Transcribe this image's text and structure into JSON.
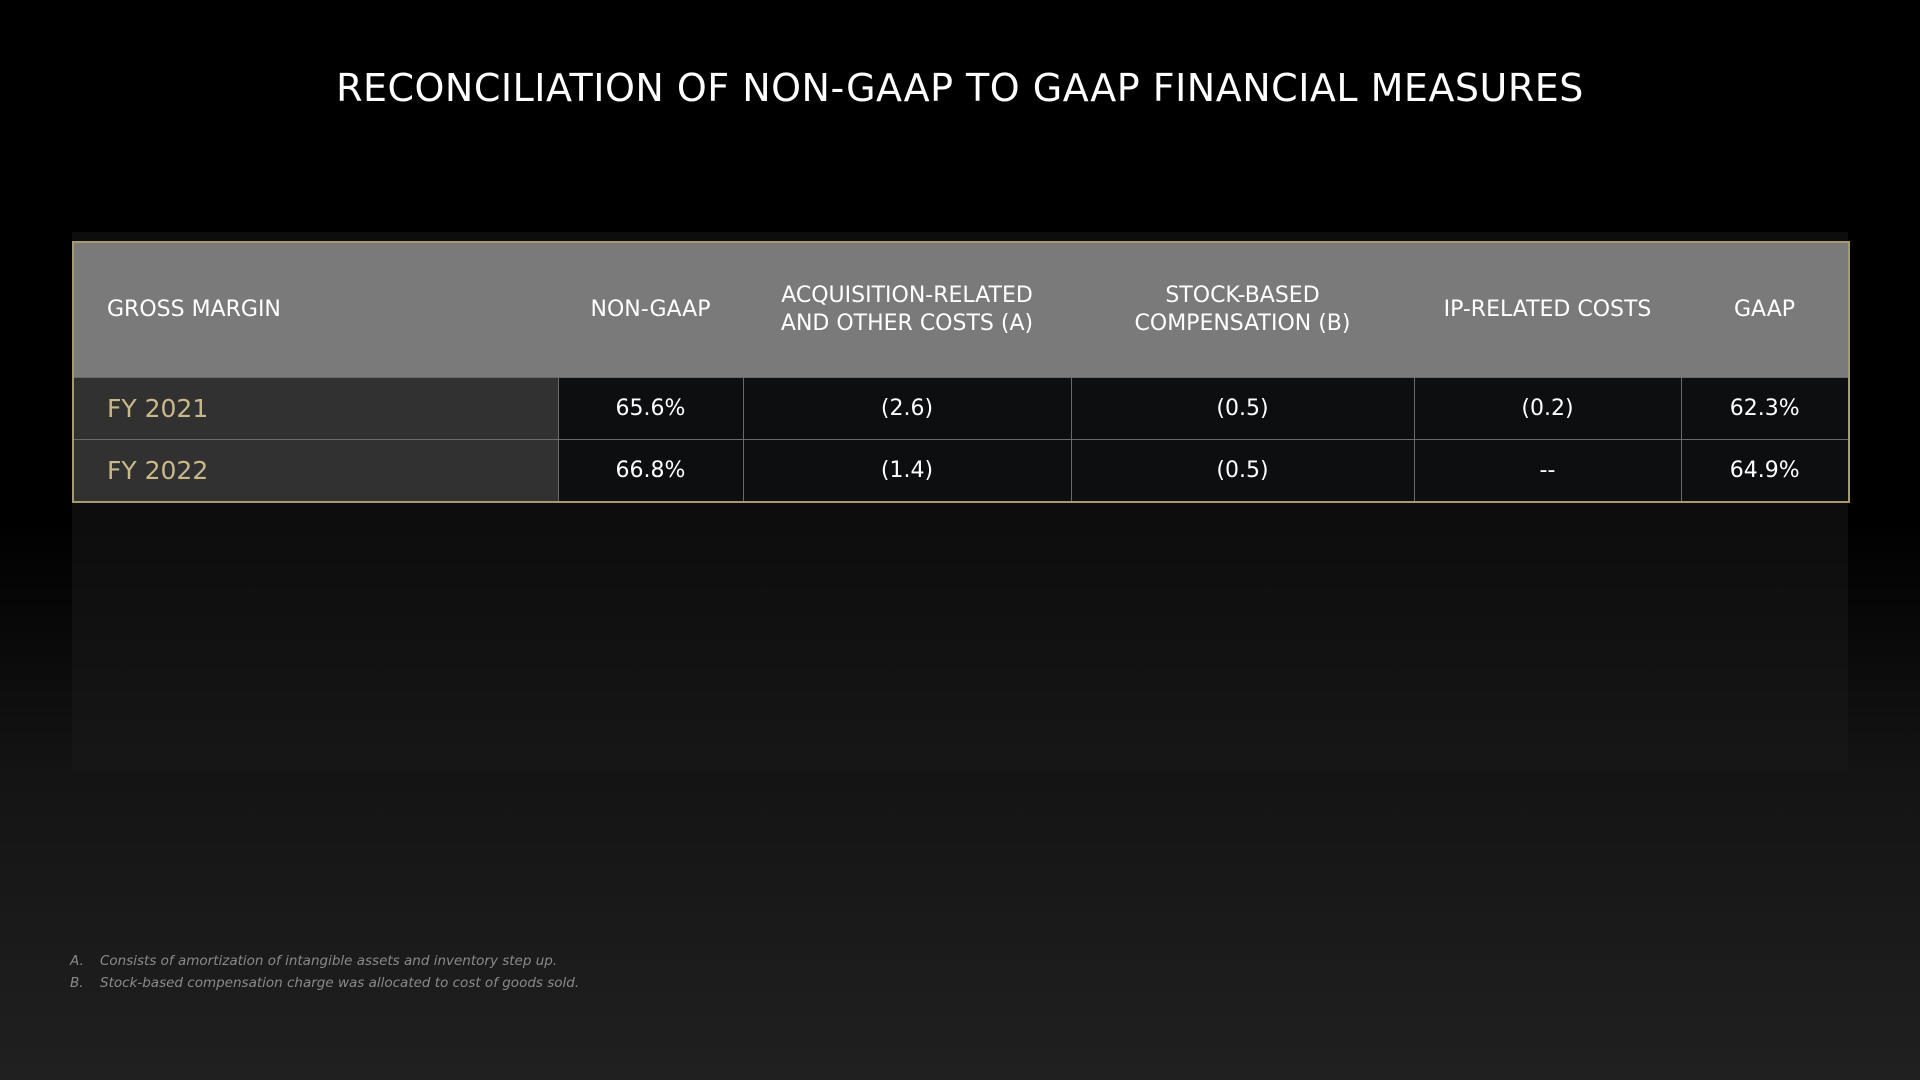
{
  "title": "RECONCILIATION OF NON-GAAP TO GAAP FINANCIAL MEASURES",
  "table": {
    "headers": [
      "GROSS MARGIN",
      "NON-GAAP",
      "ACQUISITION-RELATED\nAND OTHER COSTS (A)",
      "STOCK-BASED\nCOMPENSATION (B)",
      "IP-RELATED COSTS",
      "GAAP"
    ],
    "rows": [
      {
        "label": "FY 2021",
        "non_gaap": "65.6%",
        "acquisition": "(2.6)",
        "stock": "(0.5)",
        "ip": "(0.2)",
        "gaap": "62.3%"
      },
      {
        "label": "FY 2022",
        "non_gaap": "66.8%",
        "acquisition": "(1.4)",
        "stock": "(0.5)",
        "ip": "--",
        "gaap": "64.9%"
      }
    ]
  },
  "footnotes": [
    {
      "letter": "A.",
      "text": "Consists of amortization of intangible assets and inventory step up."
    },
    {
      "letter": "B.",
      "text": "Stock-based compensation charge was allocated to cost of goods sold."
    }
  ],
  "colors": {
    "border_accent": "#a89a6c",
    "row_label_text": "#c9b98a",
    "header_bg": "#7a7a7a"
  }
}
